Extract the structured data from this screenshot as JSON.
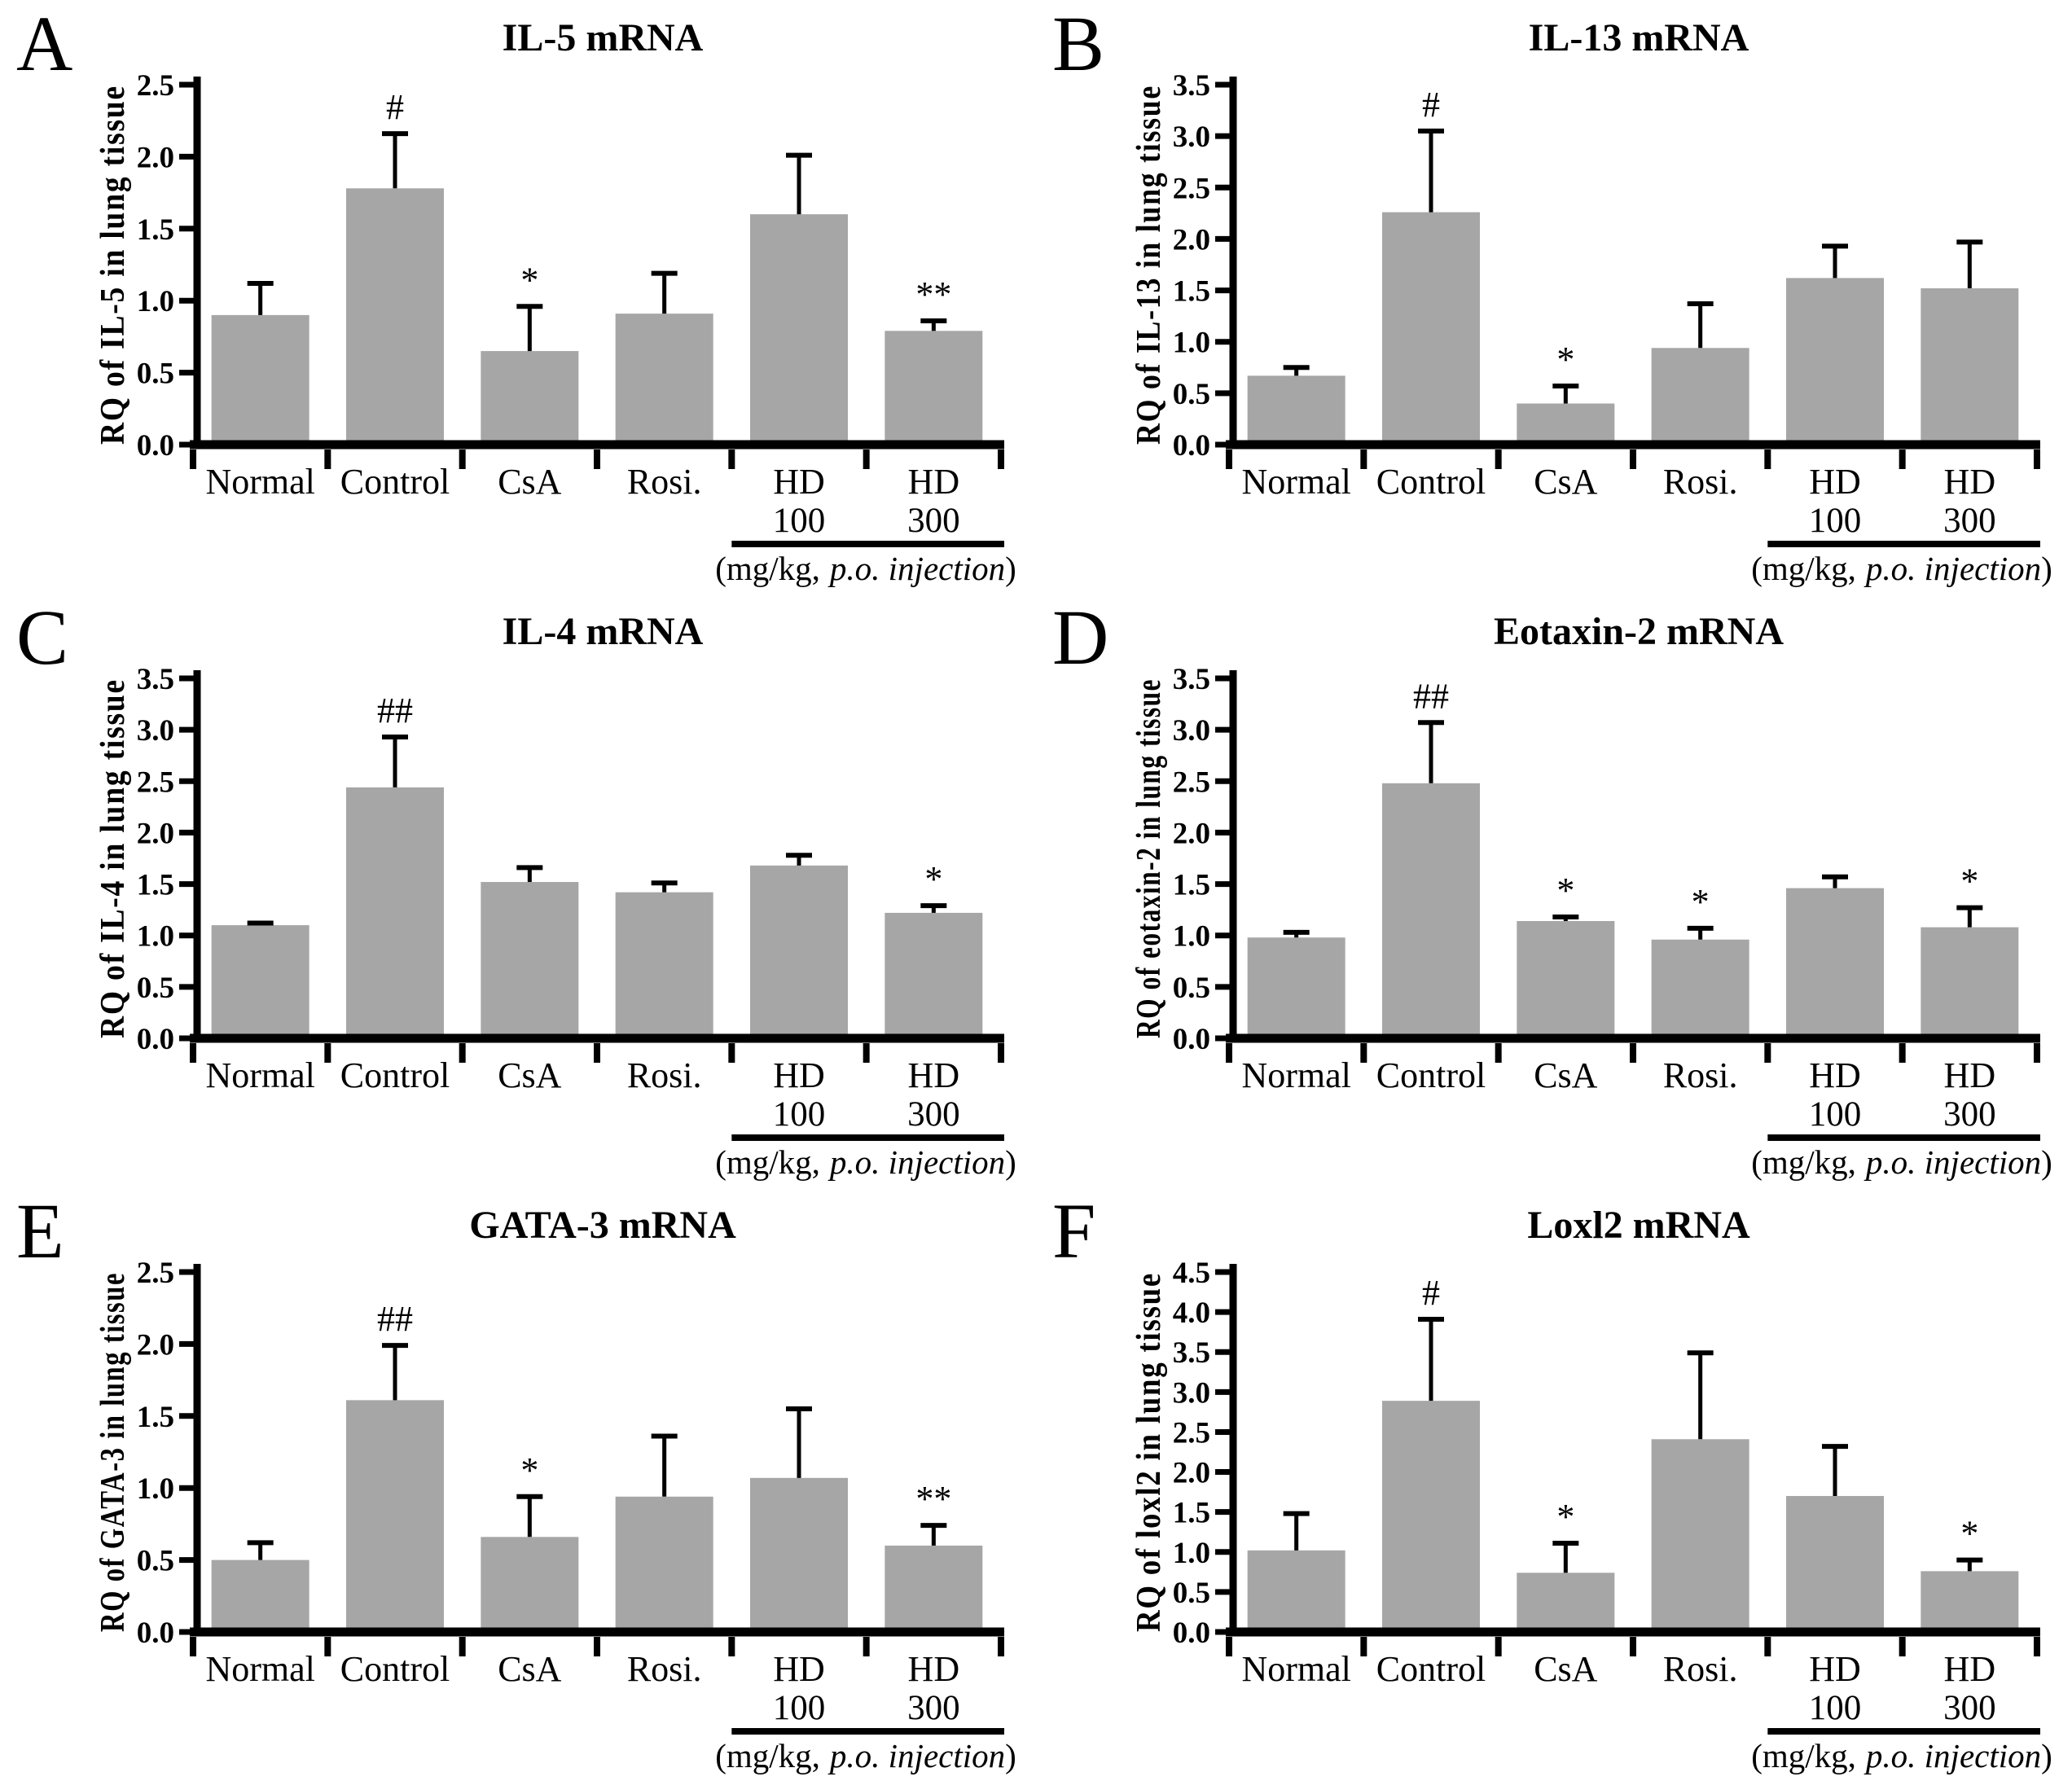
{
  "figure": {
    "dose_note": {
      "prefix": "(mg/kg,",
      "italic": "p.o. injection",
      "suffix": ")"
    },
    "dose_underline": true
  },
  "style": {
    "bar_color": "#a6a6a6",
    "axis_color": "#000000",
    "text_color": "#000000"
  },
  "chart_data": [
    {
      "panel": "A",
      "type": "bar",
      "title": "IL-5 mRNA",
      "ylabel": "RQ of IL-5 in lung tissue",
      "ylim": [
        0,
        2.5
      ],
      "ytick_step": 0.5,
      "grid": false,
      "categories": [
        "Normal",
        "Control",
        "CsA",
        "Rosi.",
        "HD",
        "HD"
      ],
      "dose_labels": [
        "",
        "",
        "",
        "",
        "100",
        "300"
      ],
      "values": [
        0.9,
        1.78,
        0.65,
        0.91,
        1.6,
        0.79
      ],
      "errors": [
        0.22,
        0.38,
        0.31,
        0.28,
        0.41,
        0.07
      ],
      "annotations": [
        "",
        "#",
        "*",
        "",
        "",
        "**"
      ]
    },
    {
      "panel": "B",
      "type": "bar",
      "title": "IL-13 mRNA",
      "ylabel": "RQ of IL-13 in lung tissue",
      "ylim": [
        0,
        3.5
      ],
      "ytick_step": 0.5,
      "grid": false,
      "categories": [
        "Normal",
        "Control",
        "CsA",
        "Rosi.",
        "HD",
        "HD"
      ],
      "dose_labels": [
        "",
        "",
        "",
        "",
        "100",
        "300"
      ],
      "values": [
        0.67,
        2.26,
        0.4,
        0.94,
        1.62,
        1.52
      ],
      "errors": [
        0.08,
        0.79,
        0.17,
        0.43,
        0.31,
        0.45
      ],
      "annotations": [
        "",
        "#",
        "*",
        "",
        "",
        ""
      ]
    },
    {
      "panel": "C",
      "type": "bar",
      "title": "IL-4 mRNA",
      "ylabel": "RQ of IL-4 in lung tissue",
      "ylim": [
        0,
        3.5
      ],
      "ytick_step": 0.5,
      "grid": false,
      "categories": [
        "Normal",
        "Control",
        "CsA",
        "Rosi.",
        "HD",
        "HD"
      ],
      "dose_labels": [
        "",
        "",
        "",
        "",
        "100",
        "300"
      ],
      "values": [
        1.1,
        2.44,
        1.52,
        1.42,
        1.68,
        1.22
      ],
      "errors": [
        0.02,
        0.49,
        0.14,
        0.09,
        0.1,
        0.07
      ],
      "annotations": [
        "",
        "##",
        "",
        "",
        "",
        "*"
      ]
    },
    {
      "panel": "D",
      "type": "bar",
      "title": "Eotaxin-2 mRNA",
      "ylabel": "RQ of eotaxin-2 in lung tissue",
      "ylim": [
        0,
        3.5
      ],
      "ytick_step": 0.5,
      "grid": false,
      "categories": [
        "Normal",
        "Control",
        "CsA",
        "Rosi.",
        "HD",
        "HD"
      ],
      "dose_labels": [
        "",
        "",
        "",
        "",
        "100",
        "300"
      ],
      "values": [
        0.98,
        2.48,
        1.14,
        0.96,
        1.46,
        1.08
      ],
      "errors": [
        0.05,
        0.59,
        0.04,
        0.11,
        0.11,
        0.19
      ],
      "annotations": [
        "",
        "##",
        "*",
        "*",
        "",
        "*"
      ]
    },
    {
      "panel": "E",
      "type": "bar",
      "title": "GATA-3 mRNA",
      "ylabel": "RQ of GATA-3 in lung tissue",
      "ylim": [
        0,
        2.5
      ],
      "ytick_step": 0.5,
      "grid": false,
      "categories": [
        "Normal",
        "Control",
        "CsA",
        "Rosi.",
        "HD",
        "HD"
      ],
      "dose_labels": [
        "",
        "",
        "",
        "",
        "100",
        "300"
      ],
      "values": [
        0.5,
        1.61,
        0.66,
        0.94,
        1.07,
        0.6
      ],
      "errors": [
        0.12,
        0.38,
        0.28,
        0.42,
        0.48,
        0.14
      ],
      "annotations": [
        "",
        "##",
        "*",
        "",
        "",
        "**"
      ]
    },
    {
      "panel": "F",
      "type": "bar",
      "title": "Loxl2 mRNA",
      "ylabel": "RQ of loxl2 in lung tissue",
      "ylim": [
        0,
        4.5
      ],
      "ytick_step": 0.5,
      "grid": false,
      "categories": [
        "Normal",
        "Control",
        "CsA",
        "Rosi.",
        "HD",
        "HD"
      ],
      "dose_labels": [
        "",
        "",
        "",
        "",
        "100",
        "300"
      ],
      "values": [
        1.02,
        2.89,
        0.74,
        2.41,
        1.7,
        0.76
      ],
      "errors": [
        0.46,
        1.02,
        0.37,
        1.08,
        0.62,
        0.14
      ],
      "annotations": [
        "",
        "#",
        "*",
        "",
        "",
        "*"
      ]
    }
  ]
}
